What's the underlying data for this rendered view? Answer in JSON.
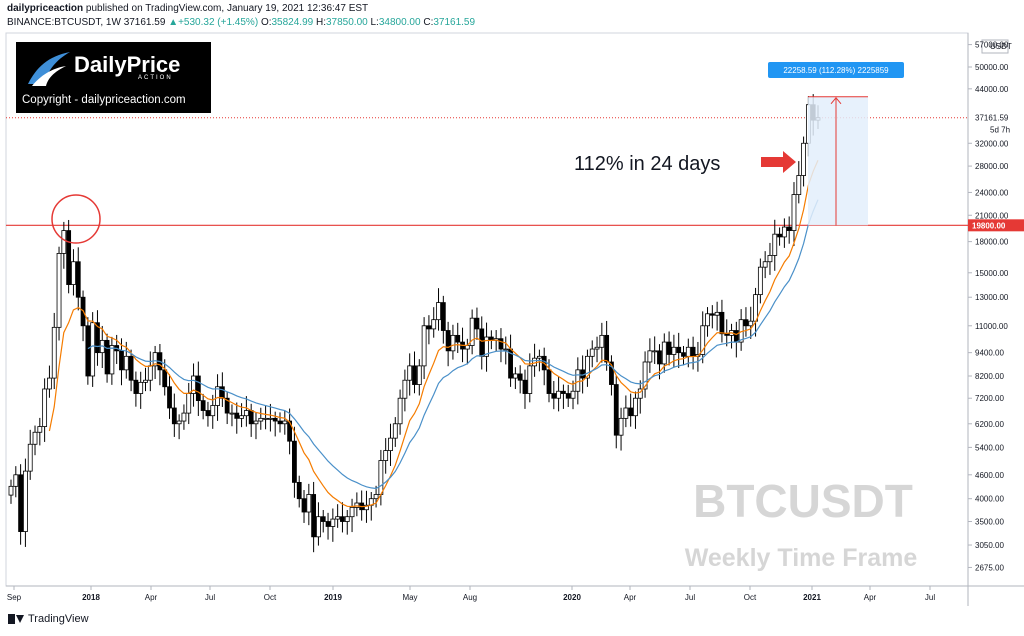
{
  "header": {
    "author": "dailypriceaction",
    "published_text": "published on TradingView.com, January 19, 2021 12:36:47 EST",
    "symbol_line": "BINANCE:BTCUSDT, 1W",
    "last": "37161.59",
    "change": "+530.32 (+1.45%)",
    "o_label": "O:",
    "o_value": "35824.99",
    "h_label": "H:",
    "h_value": "37850.00",
    "l_label": "L:",
    "l_value": "34800.00",
    "c_label": "C:",
    "c_value": "37161.59"
  },
  "logo": {
    "brand": "DailyPrice",
    "sub": "ACTION",
    "copyright": "Copyright - dailypriceaction.com"
  },
  "footer": {
    "brand": "TradingView"
  },
  "colors": {
    "up": "#26a69a",
    "down": "#000000",
    "ema_fast": "#f57c00",
    "ema_slow": "#4a90c9",
    "resistance": "#e53935",
    "measure_fill": "#e3eefb",
    "measure_label_bg": "#2196f3"
  },
  "chart_data": {
    "type": "candlestick",
    "title": "",
    "scale": "log",
    "y_currency_label": "USDT",
    "ylim": [
      2400,
      61000
    ],
    "y_ticks": [
      "57000.00",
      "50000.00",
      "44000.00",
      "37161.59",
      "32000.00",
      "28000.00",
      "24000.00",
      "21000.00",
      "19800.00",
      "18000.00",
      "15000.00",
      "13000.00",
      "11000.00",
      "9400.00",
      "8200.00",
      "7200.00",
      "6200.00",
      "5400.00",
      "4600.00",
      "4000.00",
      "3500.00",
      "3050.00",
      "2675.00"
    ],
    "last_price_label": "37161.59",
    "countdown_label": "5d 7h",
    "resistance_label": "19800.00",
    "x_ticks": [
      "Sep",
      "2018",
      "Apr",
      "Jul",
      "Oct",
      "2019",
      "May",
      "Aug",
      "2020",
      "Apr",
      "Jul",
      "Oct",
      "2021",
      "Apr",
      "Jul"
    ],
    "resistance_level": 19800,
    "annotation": "112% in 24 days",
    "measure_label": "22258.59 (112.28%) 2225859",
    "watermark_title": "BTCUSDT",
    "watermark_subtitle": "Weekly Time Frame",
    "series": [
      {
        "name": "",
        "values": [
          4300,
          4600,
          3300,
          4700,
          5500,
          5900,
          6100,
          7600,
          8100,
          10900,
          16800,
          19200,
          14000,
          16000,
          13000,
          11000,
          8200,
          11200,
          9400,
          10100,
          8300,
          9800,
          9500,
          8500,
          9200,
          8000,
          7400,
          7900,
          8000,
          8700,
          9400,
          8500,
          7700,
          6800,
          6200,
          6300,
          6600,
          7400,
          8200,
          7100,
          6700,
          6500,
          6900,
          7700,
          7200,
          6600,
          6600,
          6400,
          6500,
          6700,
          6200,
          6300,
          6400,
          6400,
          6400,
          6300,
          6200,
          6300,
          5600,
          4400,
          4000,
          3700,
          4100,
          3200,
          3600,
          3500,
          3400,
          3550,
          3600,
          3500,
          3600,
          3800,
          3900,
          3750,
          3850,
          4000,
          4100,
          5000,
          5300,
          5700,
          6200,
          7200,
          8000,
          8700,
          7800,
          8700,
          11000,
          10800,
          11400,
          12600,
          10700,
          9500,
          10400,
          10000,
          9600,
          9800,
          11500,
          10800,
          9200,
          10300,
          10100,
          10200,
          9600,
          9600,
          8100,
          8300,
          8000,
          7400,
          8700,
          9100,
          9200,
          8500,
          7400,
          7200,
          7500,
          7400,
          7200,
          7500,
          8500,
          8100,
          9200,
          9600,
          9700,
          10400,
          8900,
          7800,
          5800,
          6400,
          6800,
          6500,
          7200,
          7600,
          8900,
          9500,
          9500,
          8800,
          10000,
          9300,
          9700,
          9400,
          9200,
          9700,
          9200,
          9300,
          11000,
          11800,
          11700,
          11900,
          10500,
          10400,
          10700,
          10000,
          11400,
          11000,
          11300,
          13200,
          15500,
          16000,
          16600,
          18800,
          18500,
          19600,
          19200,
          23700,
          26500,
          32000,
          40100,
          36630,
          37160
        ]
      }
    ],
    "ohlc_note": "weekly closes; series name not shown on chart",
    "ema_fast_periods": 10,
    "ema_slow_periods": 20
  }
}
